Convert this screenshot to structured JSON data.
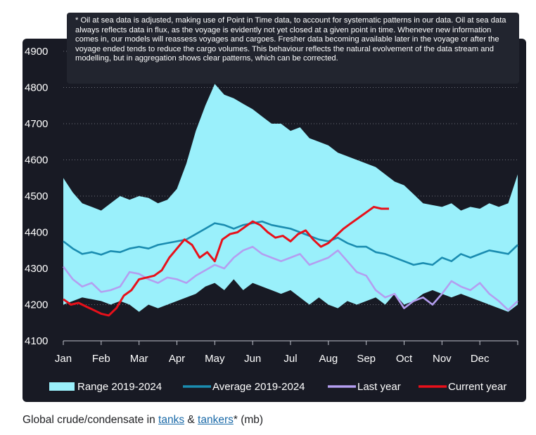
{
  "note": {
    "text": "* Oil at sea data is adjusted, making use of Point in Time data, to account for systematic patterns in our data. Oil at sea data always reflects data in flux, as the voyage is evidently not yet closed at a given point in time. Whenever new information comes in, our models will reassess voyages and cargoes. Fresher data becoming available later in the voyage or after the voyage ended tends to reduce the cargo volumes. This behaviour reflects the natural evolvement of the data stream and modelling, but in aggregation shows clear patterns, which can be corrected."
  },
  "caption": {
    "prefix": "Global crude/condensate in ",
    "link1": "tanks",
    "middle": " & ",
    "link2": "tankers",
    "suffix": "* (mb)"
  },
  "colors": {
    "background": "#181a24",
    "range": "#9af0fb",
    "average": "#1a8cb0",
    "last_year": "#b49ef0",
    "current_year": "#e8101a",
    "grid": "#c0c3cc",
    "text": "#ffffff"
  },
  "chart_data": {
    "type": "line",
    "ylim": [
      4100,
      4900
    ],
    "yticks": [
      4100,
      4200,
      4300,
      4400,
      4500,
      4600,
      4700,
      4800,
      4900
    ],
    "xticks": [
      "Jan",
      "Feb",
      "Mar",
      "Apr",
      "May",
      "Jun",
      "Jul",
      "Aug",
      "Sep",
      "Oct",
      "Nov",
      "Dec"
    ],
    "xlim": [
      0,
      12
    ],
    "legend": [
      "Range 2019-2024",
      "Average 2019-2024",
      "Last year",
      "Current year"
    ],
    "legend_position": "bottom",
    "series": [
      {
        "name": "Range 2019-2024",
        "kind": "band",
        "x": [
          0,
          0.25,
          0.5,
          0.75,
          1,
          1.25,
          1.5,
          1.75,
          2,
          2.25,
          2.5,
          2.75,
          3,
          3.25,
          3.5,
          3.75,
          4,
          4.25,
          4.5,
          4.75,
          5,
          5.25,
          5.5,
          5.75,
          6,
          6.25,
          6.5,
          6.75,
          7,
          7.25,
          7.5,
          7.75,
          8,
          8.25,
          8.5,
          8.75,
          9,
          9.25,
          9.5,
          9.75,
          10,
          10.25,
          10.5,
          10.75,
          11,
          11.25,
          11.5,
          11.75,
          12
        ],
        "upper": [
          4550,
          4510,
          4480,
          4470,
          4460,
          4480,
          4500,
          4490,
          4500,
          4495,
          4480,
          4490,
          4520,
          4590,
          4680,
          4750,
          4810,
          4780,
          4770,
          4755,
          4740,
          4720,
          4700,
          4700,
          4680,
          4690,
          4660,
          4650,
          4640,
          4620,
          4610,
          4600,
          4590,
          4580,
          4560,
          4540,
          4530,
          4505,
          4480,
          4475,
          4470,
          4480,
          4460,
          4470,
          4465,
          4480,
          4470,
          4480,
          4560
        ],
        "lower": [
          4200,
          4210,
          4220,
          4215,
          4210,
          4200,
          4210,
          4200,
          4180,
          4200,
          4190,
          4200,
          4210,
          4220,
          4230,
          4250,
          4260,
          4240,
          4270,
          4240,
          4260,
          4250,
          4240,
          4230,
          4240,
          4220,
          4200,
          4220,
          4200,
          4190,
          4210,
          4200,
          4210,
          4220,
          4200,
          4230,
          4200,
          4210,
          4230,
          4240,
          4230,
          4220,
          4230,
          4220,
          4210,
          4200,
          4190,
          4180,
          4200
        ]
      },
      {
        "name": "Average 2019-2024",
        "x": [
          0,
          0.25,
          0.5,
          0.75,
          1,
          1.25,
          1.5,
          1.75,
          2,
          2.25,
          2.5,
          2.75,
          3,
          3.25,
          3.5,
          3.75,
          4,
          4.25,
          4.5,
          4.75,
          5,
          5.25,
          5.5,
          5.75,
          6,
          6.25,
          6.5,
          6.75,
          7,
          7.25,
          7.5,
          7.75,
          8,
          8.25,
          8.5,
          8.75,
          9,
          9.25,
          9.5,
          9.75,
          10,
          10.25,
          10.5,
          10.75,
          11,
          11.25,
          11.5,
          11.75,
          12
        ],
        "values": [
          4375,
          4355,
          4340,
          4345,
          4338,
          4348,
          4345,
          4355,
          4360,
          4355,
          4365,
          4370,
          4375,
          4380,
          4395,
          4410,
          4425,
          4420,
          4410,
          4420,
          4425,
          4430,
          4420,
          4415,
          4410,
          4400,
          4390,
          4380,
          4375,
          4385,
          4370,
          4360,
          4360,
          4345,
          4340,
          4330,
          4320,
          4310,
          4315,
          4310,
          4330,
          4320,
          4340,
          4330,
          4340,
          4350,
          4345,
          4340,
          4365
        ]
      },
      {
        "name": "Last year",
        "x": [
          0,
          0.25,
          0.5,
          0.75,
          1,
          1.25,
          1.5,
          1.75,
          2,
          2.25,
          2.5,
          2.75,
          3,
          3.25,
          3.5,
          3.75,
          4,
          4.25,
          4.5,
          4.75,
          5,
          5.25,
          5.5,
          5.75,
          6,
          6.25,
          6.5,
          6.75,
          7,
          7.25,
          7.5,
          7.75,
          8,
          8.25,
          8.5,
          8.75,
          9,
          9.25,
          9.5,
          9.75,
          10,
          10.25,
          10.5,
          10.75,
          11,
          11.25,
          11.5,
          11.75,
          12
        ],
        "values": [
          4305,
          4270,
          4250,
          4260,
          4235,
          4240,
          4250,
          4290,
          4285,
          4270,
          4260,
          4275,
          4270,
          4260,
          4280,
          4295,
          4310,
          4300,
          4330,
          4350,
          4360,
          4340,
          4330,
          4320,
          4330,
          4340,
          4310,
          4320,
          4330,
          4350,
          4320,
          4290,
          4280,
          4240,
          4220,
          4230,
          4190,
          4210,
          4220,
          4200,
          4230,
          4265,
          4250,
          4240,
          4260,
          4230,
          4210,
          4185,
          4210
        ]
      },
      {
        "name": "Current year",
        "x": [
          0,
          0.2,
          0.4,
          0.6,
          0.8,
          1,
          1.2,
          1.4,
          1.6,
          1.8,
          2,
          2.2,
          2.4,
          2.6,
          2.8,
          3,
          3.2,
          3.4,
          3.6,
          3.8,
          4,
          4.2,
          4.4,
          4.6,
          4.8,
          5,
          5.2,
          5.4,
          5.6,
          5.8,
          6,
          6.2,
          6.4,
          6.6,
          6.8,
          7,
          7.2,
          7.4,
          7.6,
          7.8,
          8,
          8.2,
          8.4,
          8.6,
          8.8,
          9,
          9.2,
          9.4,
          9.6,
          9.8,
          10,
          10.2,
          10.4,
          10.6,
          10.8,
          11,
          11.2,
          11.4,
          11.6,
          11.8,
          12
        ],
        "values": [
          4215,
          4200,
          4205,
          4195,
          4185,
          4175,
          4170,
          4190,
          4225,
          4240,
          4270,
          4275,
          4280,
          4295,
          4330,
          4355,
          4380,
          4365,
          4330,
          4345,
          4320,
          4380,
          4395,
          4400,
          4415,
          4430,
          4420,
          4400,
          4385,
          4390,
          4375,
          4395,
          4405,
          4380,
          4360,
          4370,
          4390,
          4410,
          4425,
          4440,
          4455,
          4470,
          4465,
          4465,
          null,
          null,
          null,
          null,
          null,
          null,
          null,
          null,
          null,
          null,
          null,
          null,
          null,
          null,
          null,
          null,
          null
        ]
      }
    ]
  }
}
